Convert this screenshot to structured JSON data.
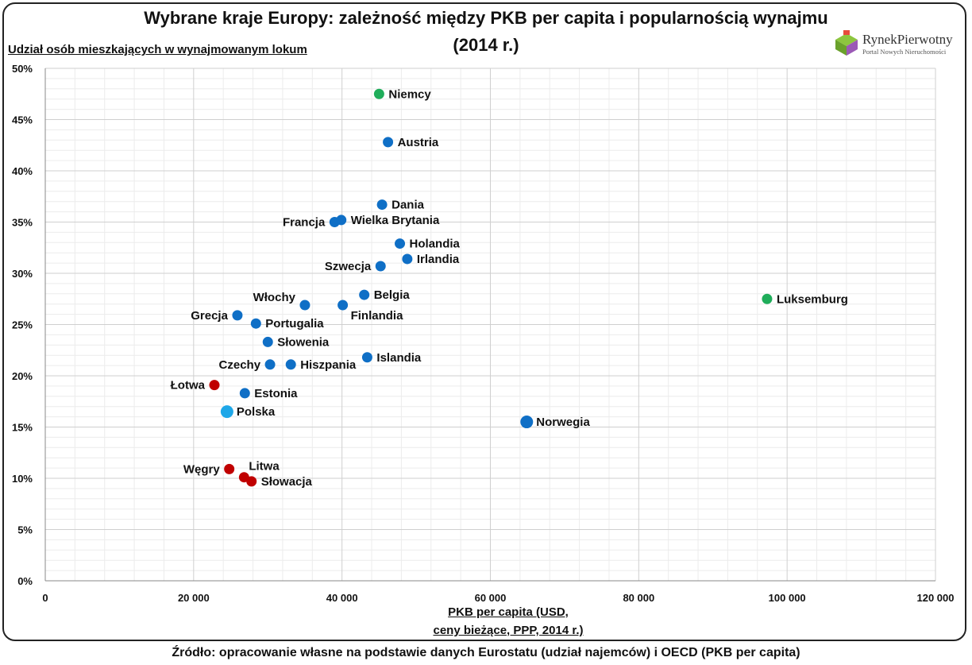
{
  "title_line1": "Wybrane kraje Europy: zależność między PKB per capita i popularnością wynajmu",
  "title_line2": "(2014 r.)",
  "logo": {
    "name": "RynekPierwotny",
    "subtitle": "Portal Nowych Nieruchomości"
  },
  "source": "Źródło: opracowanie własne na podstawie danych Eurostatu (udział najemców) i OECD (PKB per capita)",
  "chart_data": {
    "type": "scatter",
    "title": "Wybrane kraje Europy: zależność między PKB per capita i popularnością wynajmu (2014 r.)",
    "xlabel_line1": "PKB per capita (USD,",
    "xlabel_line2": "ceny bieżące, PPP, 2014 r.)",
    "ylabel": "Udział osób mieszkających w wynajmowanym lokum",
    "xlim": [
      0,
      120000
    ],
    "ylim": [
      0,
      50
    ],
    "x_ticks": [
      {
        "value": 0,
        "label": "0"
      },
      {
        "value": 20000,
        "label": "20 000"
      },
      {
        "value": 40000,
        "label": "40 000"
      },
      {
        "value": 60000,
        "label": "60 000"
      },
      {
        "value": 80000,
        "label": "80 000"
      },
      {
        "value": 100000,
        "label": "100 000"
      },
      {
        "value": 120000,
        "label": "120 000"
      }
    ],
    "y_ticks": [
      {
        "value": 0,
        "label": "0%"
      },
      {
        "value": 5,
        "label": "5%"
      },
      {
        "value": 10,
        "label": "10%"
      },
      {
        "value": 15,
        "label": "15%"
      },
      {
        "value": 20,
        "label": "20%"
      },
      {
        "value": 25,
        "label": "25%"
      },
      {
        "value": 30,
        "label": "30%"
      },
      {
        "value": 35,
        "label": "35%"
      },
      {
        "value": 40,
        "label": "40%"
      },
      {
        "value": 45,
        "label": "45%"
      },
      {
        "value": 50,
        "label": "50%"
      }
    ],
    "grid": true,
    "colors": {
      "blue": "#0f6fc6",
      "green": "#1fad5a",
      "red": "#c00000",
      "highlight": "#1ea7e8"
    },
    "points": [
      {
        "name": "Niemcy",
        "x": 45000,
        "y": 47.5,
        "color": "green",
        "label_side": "right"
      },
      {
        "name": "Austria",
        "x": 46200,
        "y": 42.8,
        "color": "blue",
        "label_side": "right"
      },
      {
        "name": "Dania",
        "x": 45400,
        "y": 36.7,
        "color": "blue",
        "label_side": "right"
      },
      {
        "name": "Francja",
        "x": 39000,
        "y": 35.0,
        "color": "blue",
        "label_side": "left"
      },
      {
        "name": "Wielka Brytania",
        "x": 39900,
        "y": 35.2,
        "color": "blue",
        "label_side": "right"
      },
      {
        "name": "Holandia",
        "x": 47800,
        "y": 32.9,
        "color": "blue",
        "label_side": "right"
      },
      {
        "name": "Irlandia",
        "x": 48800,
        "y": 31.4,
        "color": "blue",
        "label_side": "right"
      },
      {
        "name": "Szwecja",
        "x": 45200,
        "y": 30.7,
        "color": "blue",
        "label_side": "left"
      },
      {
        "name": "Belgia",
        "x": 43000,
        "y": 27.9,
        "color": "blue",
        "label_side": "right"
      },
      {
        "name": "Finlandia",
        "x": 40100,
        "y": 26.9,
        "color": "blue",
        "label_side": "below-right"
      },
      {
        "name": "Włochy",
        "x": 35000,
        "y": 26.9,
        "color": "blue",
        "label_side": "above-left"
      },
      {
        "name": "Grecja",
        "x": 25900,
        "y": 25.9,
        "color": "blue",
        "label_side": "left"
      },
      {
        "name": "Portugalia",
        "x": 28400,
        "y": 25.1,
        "color": "blue",
        "label_side": "right"
      },
      {
        "name": "Słowenia",
        "x": 30000,
        "y": 23.3,
        "color": "blue",
        "label_side": "right"
      },
      {
        "name": "Islandia",
        "x": 43400,
        "y": 21.8,
        "color": "blue",
        "label_side": "right"
      },
      {
        "name": "Czechy",
        "x": 30300,
        "y": 21.1,
        "color": "blue",
        "label_side": "left"
      },
      {
        "name": "Hiszpania",
        "x": 33100,
        "y": 21.1,
        "color": "blue",
        "label_side": "right"
      },
      {
        "name": "Łotwa",
        "x": 22800,
        "y": 19.1,
        "color": "red",
        "label_side": "left"
      },
      {
        "name": "Estonia",
        "x": 26900,
        "y": 18.3,
        "color": "blue",
        "label_side": "right"
      },
      {
        "name": "Polska",
        "x": 24500,
        "y": 16.5,
        "color": "highlight",
        "label_side": "right"
      },
      {
        "name": "Norwegia",
        "x": 64900,
        "y": 15.5,
        "color": "blue",
        "label_side": "right"
      },
      {
        "name": "Luksemburg",
        "x": 97300,
        "y": 27.5,
        "color": "green",
        "label_side": "right"
      },
      {
        "name": "Węgry",
        "x": 24800,
        "y": 10.9,
        "color": "red",
        "label_side": "left"
      },
      {
        "name": "Litwa",
        "x": 26800,
        "y": 10.1,
        "color": "red",
        "label_side": "above-right"
      },
      {
        "name": "Słowacja",
        "x": 27800,
        "y": 9.7,
        "color": "red",
        "label_side": "right"
      }
    ]
  }
}
